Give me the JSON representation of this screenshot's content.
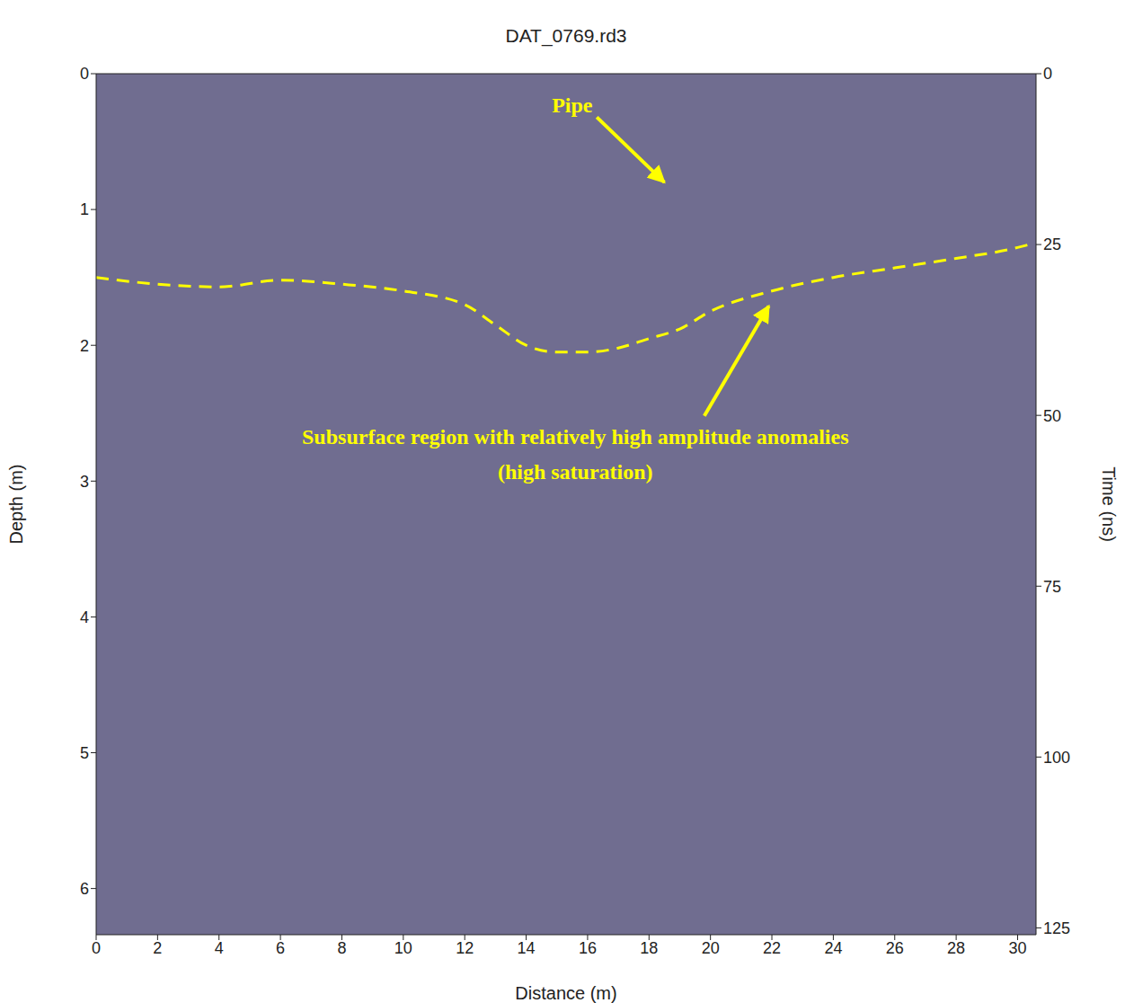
{
  "chart_data": {
    "type": "line",
    "title": "DAT_0769.rd3",
    "x_label": "Distance (m)",
    "y_label": "Depth (m)",
    "y2_label": "Time (ns)",
    "x": [
      0,
      2,
      4,
      6,
      8,
      10,
      12,
      13,
      14,
      15,
      16,
      17,
      18,
      19,
      20,
      22,
      24,
      26,
      28,
      30,
      30.5
    ],
    "series": [
      {
        "color": "#ffff00",
        "line_style": "dashed",
        "values": [
          1.5,
          1.55,
          1.57,
          1.52,
          1.55,
          1.6,
          1.7,
          1.85,
          2.0,
          2.05,
          2.05,
          2.02,
          1.95,
          1.88,
          1.75,
          1.6,
          1.5,
          1.43,
          1.36,
          1.28,
          1.25
        ]
      }
    ],
    "xlim": [
      0,
      30.6
    ],
    "xticks": [
      0,
      2,
      4,
      6,
      8,
      10,
      12,
      14,
      16,
      18,
      20,
      22,
      24,
      26,
      28,
      30
    ],
    "ylim": [
      0,
      6.34
    ],
    "yticks": [
      0,
      1,
      2,
      3,
      4,
      5,
      6
    ],
    "y2lim": [
      0,
      126
    ],
    "y2ticks": [
      0,
      25,
      50,
      75,
      100,
      125
    ],
    "grid": false,
    "annotations": [
      {
        "text": "Pipe",
        "x": 15.5,
        "y": 0.25,
        "arrow": [
          [
            16.3,
            0.32
          ],
          [
            18.5,
            0.8
          ]
        ]
      },
      {
        "text": "Subsurface region with relatively high amplitude anomalies",
        "x": 15.6,
        "y": 2.69,
        "arrow": [
          [
            19.8,
            2.52
          ],
          [
            21.9,
            1.71
          ]
        ]
      },
      {
        "text": "(high saturation)",
        "x": 15.6,
        "y": 2.95
      }
    ]
  }
}
